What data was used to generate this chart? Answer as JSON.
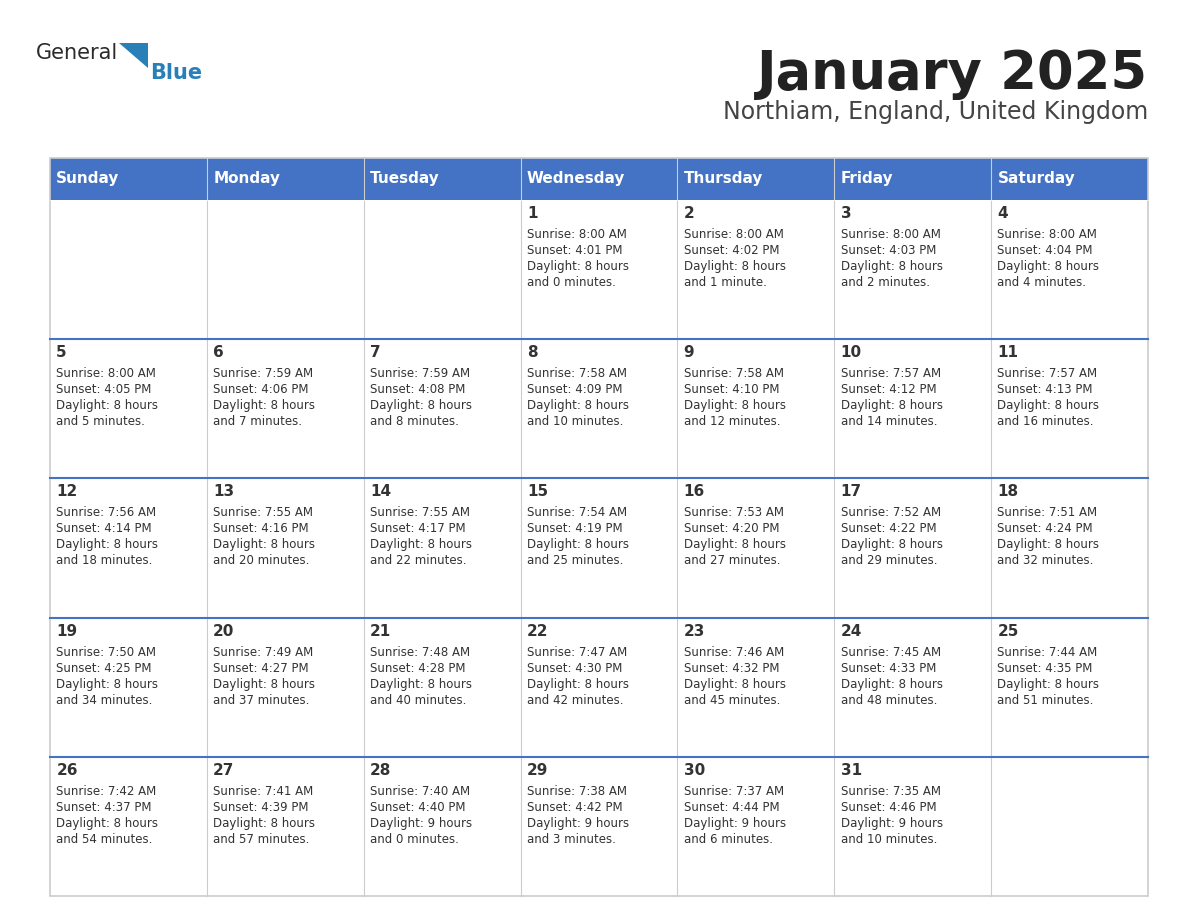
{
  "title": "January 2025",
  "subtitle": "Northiam, England, United Kingdom",
  "days_of_week": [
    "Sunday",
    "Monday",
    "Tuesday",
    "Wednesday",
    "Thursday",
    "Friday",
    "Saturday"
  ],
  "header_bg": "#4472C4",
  "header_text": "#FFFFFF",
  "cell_bg": "#FFFFFF",
  "row_line_color": "#4472C4",
  "title_color": "#222222",
  "subtitle_color": "#444444",
  "text_color": "#333333",
  "border_color": "#CCCCCC",
  "calendar_data": [
    [
      null,
      null,
      null,
      {
        "day": 1,
        "sunrise": "8:00 AM",
        "sunset": "4:01 PM",
        "daylight": "8 hours\nand 0 minutes."
      },
      {
        "day": 2,
        "sunrise": "8:00 AM",
        "sunset": "4:02 PM",
        "daylight": "8 hours\nand 1 minute."
      },
      {
        "day": 3,
        "sunrise": "8:00 AM",
        "sunset": "4:03 PM",
        "daylight": "8 hours\nand 2 minutes."
      },
      {
        "day": 4,
        "sunrise": "8:00 AM",
        "sunset": "4:04 PM",
        "daylight": "8 hours\nand 4 minutes."
      }
    ],
    [
      {
        "day": 5,
        "sunrise": "8:00 AM",
        "sunset": "4:05 PM",
        "daylight": "8 hours\nand 5 minutes."
      },
      {
        "day": 6,
        "sunrise": "7:59 AM",
        "sunset": "4:06 PM",
        "daylight": "8 hours\nand 7 minutes."
      },
      {
        "day": 7,
        "sunrise": "7:59 AM",
        "sunset": "4:08 PM",
        "daylight": "8 hours\nand 8 minutes."
      },
      {
        "day": 8,
        "sunrise": "7:58 AM",
        "sunset": "4:09 PM",
        "daylight": "8 hours\nand 10 minutes."
      },
      {
        "day": 9,
        "sunrise": "7:58 AM",
        "sunset": "4:10 PM",
        "daylight": "8 hours\nand 12 minutes."
      },
      {
        "day": 10,
        "sunrise": "7:57 AM",
        "sunset": "4:12 PM",
        "daylight": "8 hours\nand 14 minutes."
      },
      {
        "day": 11,
        "sunrise": "7:57 AM",
        "sunset": "4:13 PM",
        "daylight": "8 hours\nand 16 minutes."
      }
    ],
    [
      {
        "day": 12,
        "sunrise": "7:56 AM",
        "sunset": "4:14 PM",
        "daylight": "8 hours\nand 18 minutes."
      },
      {
        "day": 13,
        "sunrise": "7:55 AM",
        "sunset": "4:16 PM",
        "daylight": "8 hours\nand 20 minutes."
      },
      {
        "day": 14,
        "sunrise": "7:55 AM",
        "sunset": "4:17 PM",
        "daylight": "8 hours\nand 22 minutes."
      },
      {
        "day": 15,
        "sunrise": "7:54 AM",
        "sunset": "4:19 PM",
        "daylight": "8 hours\nand 25 minutes."
      },
      {
        "day": 16,
        "sunrise": "7:53 AM",
        "sunset": "4:20 PM",
        "daylight": "8 hours\nand 27 minutes."
      },
      {
        "day": 17,
        "sunrise": "7:52 AM",
        "sunset": "4:22 PM",
        "daylight": "8 hours\nand 29 minutes."
      },
      {
        "day": 18,
        "sunrise": "7:51 AM",
        "sunset": "4:24 PM",
        "daylight": "8 hours\nand 32 minutes."
      }
    ],
    [
      {
        "day": 19,
        "sunrise": "7:50 AM",
        "sunset": "4:25 PM",
        "daylight": "8 hours\nand 34 minutes."
      },
      {
        "day": 20,
        "sunrise": "7:49 AM",
        "sunset": "4:27 PM",
        "daylight": "8 hours\nand 37 minutes."
      },
      {
        "day": 21,
        "sunrise": "7:48 AM",
        "sunset": "4:28 PM",
        "daylight": "8 hours\nand 40 minutes."
      },
      {
        "day": 22,
        "sunrise": "7:47 AM",
        "sunset": "4:30 PM",
        "daylight": "8 hours\nand 42 minutes."
      },
      {
        "day": 23,
        "sunrise": "7:46 AM",
        "sunset": "4:32 PM",
        "daylight": "8 hours\nand 45 minutes."
      },
      {
        "day": 24,
        "sunrise": "7:45 AM",
        "sunset": "4:33 PM",
        "daylight": "8 hours\nand 48 minutes."
      },
      {
        "day": 25,
        "sunrise": "7:44 AM",
        "sunset": "4:35 PM",
        "daylight": "8 hours\nand 51 minutes."
      }
    ],
    [
      {
        "day": 26,
        "sunrise": "7:42 AM",
        "sunset": "4:37 PM",
        "daylight": "8 hours\nand 54 minutes."
      },
      {
        "day": 27,
        "sunrise": "7:41 AM",
        "sunset": "4:39 PM",
        "daylight": "8 hours\nand 57 minutes."
      },
      {
        "day": 28,
        "sunrise": "7:40 AM",
        "sunset": "4:40 PM",
        "daylight": "9 hours\nand 0 minutes."
      },
      {
        "day": 29,
        "sunrise": "7:38 AM",
        "sunset": "4:42 PM",
        "daylight": "9 hours\nand 3 minutes."
      },
      {
        "day": 30,
        "sunrise": "7:37 AM",
        "sunset": "4:44 PM",
        "daylight": "9 hours\nand 6 minutes."
      },
      {
        "day": 31,
        "sunrise": "7:35 AM",
        "sunset": "4:46 PM",
        "daylight": "9 hours\nand 10 minutes."
      },
      null
    ]
  ]
}
